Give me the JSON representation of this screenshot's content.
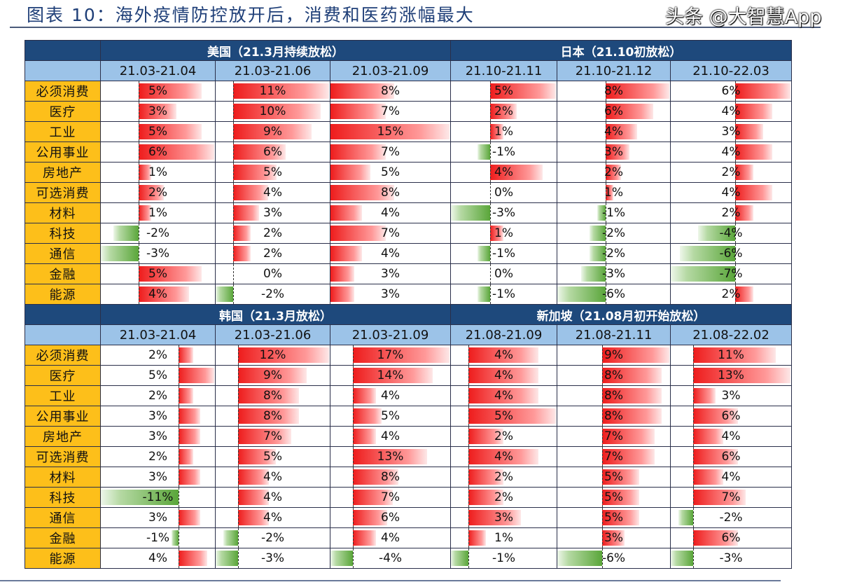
{
  "title": "图表 10：海外疫情防控放开后，消费和医药涨幅最大",
  "watermark": "头条 @大智慧App",
  "colors": {
    "header": "#1e497c",
    "subheader": "#9cc3e8",
    "label": "#fdbf1a",
    "positive": "#ee1c1c",
    "negative": "#5aa63a"
  },
  "chart_data": [
    {
      "type": "table",
      "groups": [
        {
          "title": "美国（21.3月持续放松）",
          "periods": [
            "21.03-21.04",
            "21.03-21.06",
            "21.03-21.09"
          ]
        },
        {
          "title": "日本（21.10初放松）",
          "periods": [
            "21.10-21.11",
            "21.10-21.12",
            "21.10-22.03"
          ]
        }
      ],
      "rows": [
        {
          "label": "必须消费",
          "values": [
            "5%",
            "11%",
            "8%",
            "5%",
            "8%",
            "6%"
          ]
        },
        {
          "label": "医疗",
          "values": [
            "3%",
            "10%",
            "7%",
            "2%",
            "6%",
            "4%"
          ]
        },
        {
          "label": "工业",
          "values": [
            "5%",
            "9%",
            "15%",
            "1%",
            "4%",
            "3%"
          ]
        },
        {
          "label": "公用事业",
          "values": [
            "6%",
            "6%",
            "7%",
            "-1%",
            "3%",
            "4%"
          ]
        },
        {
          "label": "房地产",
          "values": [
            "1%",
            "5%",
            "5%",
            "4%",
            "2%",
            "2%"
          ]
        },
        {
          "label": "可选消费",
          "values": [
            "2%",
            "4%",
            "8%",
            "0%",
            "1%",
            "4%"
          ]
        },
        {
          "label": "材料",
          "values": [
            "1%",
            "3%",
            "4%",
            "-3%",
            "-1%",
            "2%"
          ]
        },
        {
          "label": "科技",
          "values": [
            "-2%",
            "2%",
            "7%",
            "1%",
            "-2%",
            "-4%"
          ]
        },
        {
          "label": "通信",
          "values": [
            "-3%",
            "2%",
            "4%",
            "-1%",
            "-2%",
            "-6%"
          ]
        },
        {
          "label": "金融",
          "values": [
            "5%",
            "0%",
            "3%",
            "0%",
            "-3%",
            "-7%"
          ]
        },
        {
          "label": "能源",
          "values": [
            "4%",
            "-2%",
            "3%",
            "-1%",
            "-6%",
            "2%"
          ]
        }
      ]
    },
    {
      "type": "table",
      "groups": [
        {
          "title": "韩国（21.3月放松）",
          "periods": [
            "21.03-21.04",
            "21.03-21.06",
            "21.03-21.09"
          ]
        },
        {
          "title": "新加坡（21.08月初开始放松）",
          "periods": [
            "21.08-21.09",
            "21.08-21.11",
            "21.08-22.02"
          ]
        }
      ],
      "rows": [
        {
          "label": "必须消费",
          "values": [
            "2%",
            "12%",
            "17%",
            "4%",
            "9%",
            "11%"
          ]
        },
        {
          "label": "医疗",
          "values": [
            "5%",
            "9%",
            "14%",
            "4%",
            "8%",
            "13%"
          ]
        },
        {
          "label": "工业",
          "values": [
            "2%",
            "8%",
            "4%",
            "4%",
            "8%",
            "3%"
          ]
        },
        {
          "label": "公用事业",
          "values": [
            "3%",
            "8%",
            "5%",
            "5%",
            "8%",
            "6%"
          ]
        },
        {
          "label": "房地产",
          "values": [
            "3%",
            "7%",
            "4%",
            "2%",
            "7%",
            "4%"
          ]
        },
        {
          "label": "可选消费",
          "values": [
            "2%",
            "5%",
            "13%",
            "4%",
            "7%",
            "6%"
          ]
        },
        {
          "label": "材料",
          "values": [
            "3%",
            "4%",
            "8%",
            "2%",
            "5%",
            "4%"
          ]
        },
        {
          "label": "科技",
          "values": [
            "-11%",
            "4%",
            "7%",
            "2%",
            "5%",
            "7%"
          ]
        },
        {
          "label": "通信",
          "values": [
            "3%",
            "4%",
            "6%",
            "3%",
            "5%",
            "-2%"
          ]
        },
        {
          "label": "金融",
          "values": [
            "-1%",
            "-2%",
            "4%",
            "1%",
            "3%",
            "6%"
          ]
        },
        {
          "label": "能源",
          "values": [
            "4%",
            "-3%",
            "-4%",
            "-1%",
            "-6%",
            "-3%"
          ]
        }
      ]
    }
  ]
}
